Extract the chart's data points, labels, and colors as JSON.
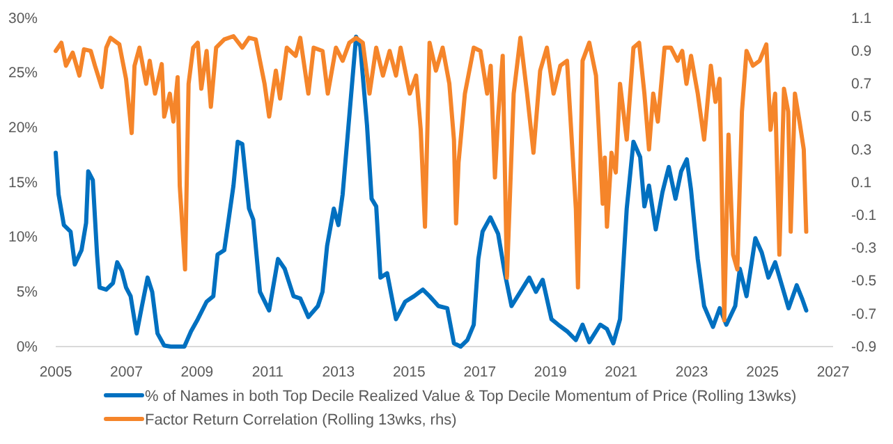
{
  "chart_data": {
    "type": "line",
    "xlim": [
      2005,
      2027
    ],
    "xticks": [
      2005,
      2007,
      2009,
      2011,
      2013,
      2015,
      2017,
      2019,
      2021,
      2023,
      2025,
      2027
    ],
    "ylim": [
      0,
      30
    ],
    "yticks": [
      {
        "value": 0,
        "label": "0%"
      },
      {
        "value": 5,
        "label": "5%"
      },
      {
        "value": 10,
        "label": "10%"
      },
      {
        "value": 15,
        "label": "15%"
      },
      {
        "value": 20,
        "label": "20%"
      },
      {
        "value": 25,
        "label": "25%"
      },
      {
        "value": 30,
        "label": "30%"
      }
    ],
    "y2lim": [
      -0.9,
      1.1
    ],
    "y2ticks": [
      -0.9,
      -0.7,
      -0.5,
      -0.3,
      -0.1,
      0.1,
      0.3,
      0.5,
      0.7,
      0.9,
      1.1
    ],
    "grid": false,
    "legend": "bottom",
    "marker": "none",
    "line_style": "solid",
    "series": [
      {
        "name": "% of Names in both Top Decile Realized Value & Top Decile Momentum of Price (Rolling 13wks)",
        "color": "#0070c0",
        "x": [
          2005.0,
          2005.08,
          2005.23,
          2005.42,
          2005.54,
          2005.73,
          2005.86,
          2005.92,
          2006.05,
          2006.17,
          2006.24,
          2006.43,
          2006.62,
          2006.74,
          2006.87,
          2006.99,
          2007.12,
          2007.29,
          2007.44,
          2007.6,
          2007.73,
          2007.88,
          2008.07,
          2008.26,
          2008.64,
          2008.83,
          2009.02,
          2009.27,
          2009.46,
          2009.58,
          2009.77,
          2010.03,
          2010.15,
          2010.28,
          2010.47,
          2010.59,
          2010.78,
          2011.04,
          2011.29,
          2011.48,
          2011.73,
          2011.92,
          2012.15,
          2012.42,
          2012.55,
          2012.68,
          2012.87,
          2013.0,
          2013.12,
          2013.31,
          2013.5,
          2013.62,
          2013.81,
          2013.94,
          2014.07,
          2014.19,
          2014.38,
          2014.63,
          2014.89,
          2015.14,
          2015.39,
          2015.58,
          2015.83,
          2016.08,
          2016.27,
          2016.46,
          2016.65,
          2016.83,
          2016.96,
          2017.08,
          2017.3,
          2017.52,
          2017.71,
          2017.9,
          2018.15,
          2018.4,
          2018.59,
          2018.78,
          2019.03,
          2019.22,
          2019.47,
          2019.72,
          2019.91,
          2020.1,
          2020.41,
          2020.6,
          2020.78,
          2020.97,
          2021.16,
          2021.35,
          2021.54,
          2021.66,
          2021.79,
          2021.98,
          2022.17,
          2022.35,
          2022.54,
          2022.7,
          2022.86,
          2022.98,
          2023.17,
          2023.35,
          2023.6,
          2023.79,
          2023.98,
          2024.23,
          2024.36,
          2024.55,
          2024.8,
          2024.98,
          2025.17,
          2025.36,
          2025.55,
          2025.74,
          2025.97,
          2026.12,
          2026.24
        ],
        "values": [
          17.7,
          13.9,
          11.1,
          10.5,
          7.5,
          8.8,
          11.3,
          16.0,
          15.2,
          8.4,
          5.4,
          5.2,
          5.8,
          7.7,
          6.9,
          5.4,
          4.6,
          1.2,
          3.7,
          6.3,
          5.0,
          1.2,
          0.1,
          0,
          0,
          1.4,
          2.5,
          4.1,
          4.6,
          8.4,
          8.8,
          14.7,
          18.7,
          18.5,
          12.6,
          11.6,
          5.0,
          3.3,
          8.0,
          7.1,
          4.6,
          4.4,
          2.7,
          3.7,
          5.0,
          9.2,
          12.6,
          11.1,
          13.9,
          21.1,
          28.3,
          27.4,
          20.2,
          13.5,
          12.8,
          6.3,
          6.7,
          2.5,
          4.1,
          4.6,
          5.2,
          4.6,
          3.7,
          3.5,
          0.3,
          0,
          0.6,
          2.0,
          8.0,
          10.5,
          11.8,
          10.3,
          6.7,
          3.7,
          5.0,
          6.3,
          5.0,
          6.1,
          2.5,
          2.0,
          1.4,
          0.6,
          2.0,
          0.4,
          2.0,
          1.6,
          0.3,
          2.5,
          12.6,
          18.7,
          17.3,
          12.8,
          14.7,
          10.7,
          14.1,
          16.4,
          13.5,
          16.0,
          17.1,
          14.3,
          8.0,
          3.7,
          1.8,
          3.5,
          2.0,
          3.7,
          7.1,
          4.6,
          9.9,
          8.6,
          6.3,
          7.7,
          5.6,
          3.5,
          5.6,
          4.4,
          3.3
        ]
      },
      {
        "name": "Factor Return Correlation (Rolling 13wks, rhs)",
        "color": "#f5852a",
        "axis": "y2",
        "x": [
          2005.0,
          2005.16,
          2005.29,
          2005.48,
          2005.67,
          2005.8,
          2005.99,
          2006.11,
          2006.3,
          2006.43,
          2006.55,
          2006.8,
          2006.99,
          2007.15,
          2007.23,
          2007.37,
          2007.56,
          2007.66,
          2007.81,
          2008.0,
          2008.07,
          2008.23,
          2008.33,
          2008.45,
          2008.51,
          2008.66,
          2008.76,
          2008.89,
          2009.02,
          2009.12,
          2009.27,
          2009.39,
          2009.54,
          2009.77,
          2010.03,
          2010.28,
          2010.47,
          2010.66,
          2010.91,
          2011.04,
          2011.23,
          2011.35,
          2011.54,
          2011.79,
          2011.92,
          2012.15,
          2012.3,
          2012.55,
          2012.7,
          2012.93,
          2013.12,
          2013.31,
          2013.5,
          2013.69,
          2013.88,
          2014.07,
          2014.26,
          2014.45,
          2014.63,
          2014.76,
          2015.02,
          2015.2,
          2015.33,
          2015.45,
          2015.58,
          2015.76,
          2015.95,
          2016.14,
          2016.27,
          2016.33,
          2016.4,
          2016.58,
          2016.83,
          2017.02,
          2017.21,
          2017.31,
          2017.43,
          2017.52,
          2017.65,
          2017.77,
          2017.96,
          2018.15,
          2018.34,
          2018.52,
          2018.71,
          2018.9,
          2019.09,
          2019.28,
          2019.47,
          2019.72,
          2019.78,
          2019.91,
          2020.1,
          2020.29,
          2020.48,
          2020.54,
          2020.6,
          2020.73,
          2020.85,
          2020.97,
          2021.16,
          2021.35,
          2021.51,
          2021.66,
          2021.79,
          2021.91,
          2022.04,
          2022.23,
          2022.41,
          2022.6,
          2022.73,
          2022.85,
          2022.98,
          2023.17,
          2023.35,
          2023.54,
          2023.67,
          2023.79,
          2023.92,
          2024.04,
          2024.17,
          2024.29,
          2024.42,
          2024.55,
          2024.73,
          2024.92,
          2025.11,
          2025.23,
          2025.36,
          2025.48,
          2025.61,
          2025.73,
          2025.8,
          2025.92,
          2026.05,
          2026.17,
          2026.24
        ],
        "values": [
          0.9,
          0.95,
          0.81,
          0.89,
          0.75,
          0.91,
          0.9,
          0.81,
          0.68,
          0.92,
          0.98,
          0.94,
          0.73,
          0.4,
          0.81,
          0.92,
          0.7,
          0.84,
          0.64,
          0.82,
          0.5,
          0.64,
          0.47,
          0.74,
          0.08,
          -0.43,
          0.7,
          0.92,
          0.95,
          0.67,
          0.9,
          0.56,
          0.92,
          0.97,
          0.99,
          0.92,
          0.98,
          0.97,
          0.7,
          0.5,
          0.78,
          0.61,
          0.92,
          0.87,
          0.98,
          0.64,
          0.92,
          0.9,
          0.64,
          0.92,
          0.84,
          0.95,
          0.98,
          0.95,
          0.64,
          0.92,
          0.75,
          0.9,
          0.75,
          0.92,
          0.64,
          0.75,
          0.42,
          -0.17,
          0.95,
          0.78,
          0.92,
          0.7,
          0.36,
          -0.15,
          0.22,
          0.64,
          0.92,
          0.9,
          0.64,
          0.81,
          0.13,
          0.5,
          0.87,
          -0.48,
          0.64,
          0.98,
          0.64,
          0.28,
          0.78,
          0.92,
          0.64,
          0.81,
          0.84,
          -0.06,
          -0.54,
          0.84,
          0.95,
          0.75,
          -0.03,
          0.25,
          -0.17,
          0.28,
          0.16,
          0.7,
          0.36,
          0.92,
          0.95,
          0.64,
          0.3,
          0.64,
          0.47,
          0.92,
          0.92,
          0.84,
          0.9,
          0.7,
          0.87,
          0.64,
          0.36,
          0.81,
          0.59,
          0.73,
          -0.74,
          0.39,
          -0.34,
          -0.43,
          0.53,
          0.9,
          0.81,
          0.84,
          0.94,
          0.42,
          0.64,
          -0.34,
          0.67,
          0.53,
          -0.2,
          0.64,
          0.47,
          0.3,
          -0.2
        ]
      }
    ]
  }
}
